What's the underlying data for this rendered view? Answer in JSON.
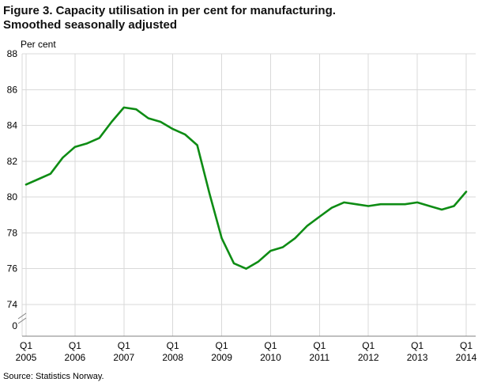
{
  "chart_data": {
    "type": "line",
    "title": "Figure 3. Capacity utilisation in per cent for manufacturing. Smoothed seasonally adjusted",
    "title_lines": [
      "Figure 3. Capacity utilisation in per cent for manufacturing.",
      "Smoothed seasonally adjusted"
    ],
    "ylabel": "Per cent",
    "source": "Source: Statistics Norway.",
    "grid": true,
    "legend": false,
    "y_axis_break": true,
    "ylim_display": [
      74,
      88
    ],
    "y_ticks": [
      0,
      74,
      76,
      78,
      80,
      82,
      84,
      86,
      88
    ],
    "x_frequency": "quarterly",
    "x_start": "Q1 2005",
    "x_end": "Q1 2014",
    "x_tick_quarter": "Q1",
    "x_tick_years": [
      "2005",
      "2006",
      "2007",
      "2008",
      "2009",
      "2010",
      "2011",
      "2012",
      "2013",
      "2014"
    ],
    "line_color": "#0e8c14",
    "grid_color": "#d9d9d9",
    "axis_color": "#808080",
    "series": [
      {
        "name": "Capacity utilisation",
        "values": [
          80.7,
          81.0,
          81.3,
          82.2,
          82.8,
          83.0,
          83.3,
          84.2,
          85.0,
          84.9,
          84.4,
          84.2,
          83.8,
          83.5,
          82.9,
          80.2,
          77.7,
          76.3,
          76.0,
          76.4,
          77.0,
          77.2,
          77.7,
          78.4,
          78.9,
          79.4,
          79.7,
          79.6,
          79.5,
          79.6,
          79.6,
          79.6,
          79.7,
          79.5,
          79.3,
          79.5,
          80.3
        ]
      }
    ]
  }
}
